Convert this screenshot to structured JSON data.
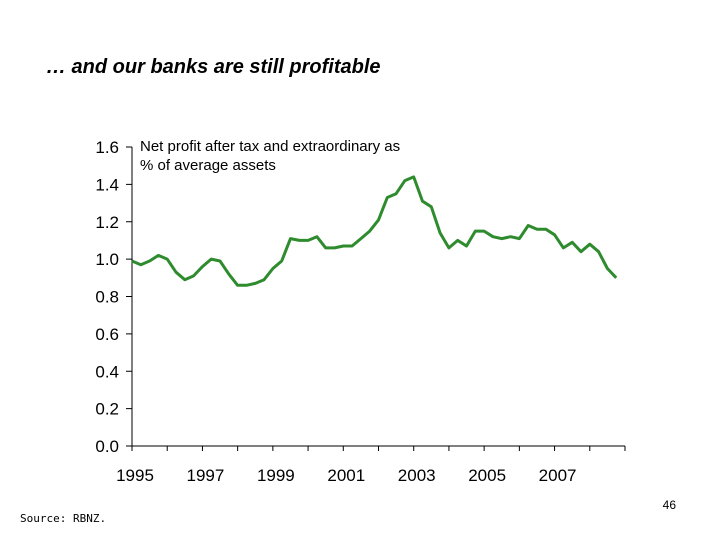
{
  "slide": {
    "title": "… and our banks are still profitable",
    "source": "Source:  RBNZ.",
    "page_number": "46"
  },
  "chart_data": {
    "type": "line",
    "annotation": [
      "Net profit after tax and extraordinary as",
      "% of average assets"
    ],
    "xlim": [
      1995,
      2009
    ],
    "ylim": [
      0,
      1.6
    ],
    "x_ticks": [
      "1995",
      "1997",
      "1999",
      "2001",
      "2003",
      "2005",
      "2007"
    ],
    "y_ticks": [
      "0.0",
      "0.2",
      "0.4",
      "0.6",
      "0.8",
      "1.0",
      "1.2",
      "1.4",
      "1.6"
    ],
    "line_color": "#2e8b2e",
    "grid": false,
    "series": [
      {
        "x": [
          1995.0,
          1995.25,
          1995.5,
          1995.75,
          1996.0,
          1996.25,
          1996.5,
          1996.75,
          1997.0,
          1997.25,
          1997.5,
          1997.75,
          1998.0,
          1998.25,
          1998.5,
          1998.75,
          1999.0,
          1999.25,
          1999.5,
          1999.75,
          2000.0,
          2000.25,
          2000.5,
          2000.75,
          2001.0,
          2001.25,
          2001.5,
          2001.75,
          2002.0,
          2002.25,
          2002.5,
          2002.75,
          2003.0,
          2003.25,
          2003.5,
          2003.75,
          2004.0,
          2004.25,
          2004.5,
          2004.75,
          2005.0,
          2005.25,
          2005.5,
          2005.75,
          2006.0,
          2006.25,
          2006.5,
          2006.75,
          2007.0,
          2007.25,
          2007.5,
          2007.75,
          2008.0,
          2008.25,
          2008.5,
          2008.75,
          2009.0
        ],
        "y": [
          0.99,
          0.97,
          0.99,
          1.02,
          1.0,
          0.93,
          0.89,
          0.91,
          0.96,
          1.0,
          0.99,
          0.92,
          0.86,
          0.86,
          0.87,
          0.89,
          0.95,
          0.99,
          1.11,
          1.1,
          1.1,
          1.12,
          1.06,
          1.06,
          1.07,
          1.07,
          1.11,
          1.15,
          1.21,
          1.33,
          1.35,
          1.42,
          1.44,
          1.31,
          1.28,
          1.14,
          1.06,
          1.1,
          1.07,
          1.15,
          1.15,
          1.12,
          1.11,
          1.12,
          1.11,
          1.18,
          1.16,
          1.16,
          1.13,
          1.06,
          1.09,
          1.04,
          1.08,
          1.04,
          0.95,
          0.9,
          null
        ]
      }
    ]
  }
}
